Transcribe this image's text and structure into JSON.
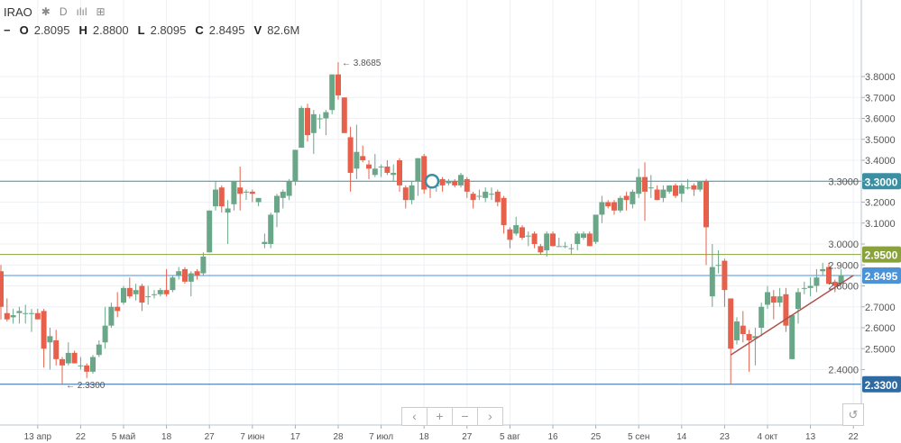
{
  "header": {
    "symbol": "IRAO",
    "interval": "D",
    "collapse_symbol": "−",
    "ohlcv": [
      {
        "label": "O",
        "value": "2.8095"
      },
      {
        "label": "H",
        "value": "2.8800"
      },
      {
        "label": "L",
        "value": "2.8095"
      },
      {
        "label": "C",
        "value": "2.8495"
      },
      {
        "label": "V",
        "value": "82.6M"
      }
    ]
  },
  "nav": {
    "left": "‹",
    "zoom_in": "+",
    "zoom_out": "−",
    "right": "›",
    "reset": "↺"
  },
  "colors": {
    "up": "#6aa789",
    "down": "#e7604c",
    "grid": "#eef1f4"
  },
  "chart_data": {
    "type": "candlestick",
    "title": "IRAO",
    "ylim": [
      2.3,
      3.9
    ],
    "y_ticks": [
      "2.4000",
      "2.5000",
      "2.6000",
      "2.7000",
      "2.8000",
      "2.9000",
      "3.0000",
      "3.1000",
      "3.2000",
      "3.3000",
      "3.4000",
      "3.5000",
      "3.6000",
      "3.7000",
      "3.8000"
    ],
    "x_ticks": [
      {
        "label": "13 апр",
        "index": 6
      },
      {
        "label": "22",
        "index": 13
      },
      {
        "label": "5 май",
        "index": 20
      },
      {
        "label": "18",
        "index": 27
      },
      {
        "label": "27",
        "index": 34
      },
      {
        "label": "7 июн",
        "index": 41
      },
      {
        "label": "17",
        "index": 48
      },
      {
        "label": "28",
        "index": 55
      },
      {
        "label": "7 июл",
        "index": 62
      },
      {
        "label": "18",
        "index": 69
      },
      {
        "label": "27",
        "index": 76
      },
      {
        "label": "5 авг",
        "index": 83
      },
      {
        "label": "16",
        "index": 90
      },
      {
        "label": "25",
        "index": 97
      },
      {
        "label": "5 сен",
        "index": 104
      },
      {
        "label": "14",
        "index": 111
      },
      {
        "label": "23",
        "index": 118
      },
      {
        "label": "4 окт",
        "index": 125
      },
      {
        "label": "13",
        "index": 132
      },
      {
        "label": "22",
        "index": 139
      }
    ],
    "ohlc": [
      [
        2.87,
        2.9,
        2.64,
        2.7
      ],
      [
        2.67,
        2.74,
        2.63,
        2.64
      ],
      [
        2.65,
        2.69,
        2.62,
        2.66
      ],
      [
        2.67,
        2.7,
        2.62,
        2.68
      ],
      [
        2.67,
        2.71,
        2.62,
        2.67
      ],
      [
        2.67,
        2.69,
        2.58,
        2.67
      ],
      [
        2.67,
        2.69,
        2.64,
        2.64
      ],
      [
        2.68,
        2.69,
        2.41,
        2.5
      ],
      [
        2.53,
        2.6,
        2.4,
        2.56
      ],
      [
        2.54,
        2.59,
        2.42,
        2.45
      ],
      [
        2.45,
        2.46,
        2.33,
        2.42
      ],
      [
        2.43,
        2.53,
        2.42,
        2.48
      ],
      [
        2.48,
        2.49,
        2.43,
        2.43
      ],
      [
        2.42,
        2.46,
        2.4,
        2.42
      ],
      [
        2.42,
        2.43,
        2.36,
        2.39
      ],
      [
        2.39,
        2.47,
        2.38,
        2.46
      ],
      [
        2.47,
        2.54,
        2.46,
        2.52
      ],
      [
        2.53,
        2.7,
        2.5,
        2.61
      ],
      [
        2.61,
        2.72,
        2.6,
        2.7
      ],
      [
        2.7,
        2.77,
        2.65,
        2.68
      ],
      [
        2.72,
        2.8,
        2.71,
        2.79
      ],
      [
        2.79,
        2.84,
        2.74,
        2.75
      ],
      [
        2.76,
        2.81,
        2.73,
        2.78
      ],
      [
        2.8,
        2.81,
        2.68,
        2.72
      ],
      [
        2.75,
        2.8,
        2.71,
        2.75
      ],
      [
        2.76,
        2.78,
        2.74,
        2.76
      ],
      [
        2.76,
        2.79,
        2.75,
        2.78
      ],
      [
        2.78,
        2.88,
        2.75,
        2.76
      ],
      [
        2.78,
        2.85,
        2.77,
        2.84
      ],
      [
        2.85,
        2.89,
        2.83,
        2.87
      ],
      [
        2.88,
        2.89,
        2.81,
        2.82
      ],
      [
        2.82,
        2.87,
        2.75,
        2.86
      ],
      [
        2.87,
        2.88,
        2.83,
        2.85
      ],
      [
        2.86,
        2.96,
        2.85,
        2.94
      ],
      [
        2.96,
        3.16,
        2.96,
        3.16
      ],
      [
        3.18,
        3.3,
        3.16,
        3.26
      ],
      [
        3.27,
        3.28,
        3.15,
        3.18
      ],
      [
        3.15,
        3.21,
        3.0,
        3.17
      ],
      [
        3.19,
        3.3,
        3.16,
        3.3
      ],
      [
        3.27,
        3.37,
        3.16,
        3.24
      ],
      [
        3.25,
        3.26,
        3.21,
        3.25
      ],
      [
        3.25,
        3.26,
        3.2,
        3.24
      ],
      [
        3.2,
        3.22,
        3.18,
        3.22
      ],
      [
        3.0,
        3.05,
        2.98,
        3.01
      ],
      [
        3.0,
        3.15,
        2.98,
        3.14
      ],
      [
        3.15,
        3.24,
        3.08,
        3.23
      ],
      [
        3.22,
        3.26,
        3.17,
        3.25
      ],
      [
        3.23,
        3.31,
        3.21,
        3.3
      ],
      [
        3.3,
        3.45,
        3.28,
        3.45
      ],
      [
        3.46,
        3.66,
        3.46,
        3.65
      ],
      [
        3.65,
        3.67,
        3.49,
        3.52
      ],
      [
        3.53,
        3.64,
        3.43,
        3.62
      ],
      [
        3.6,
        3.62,
        3.55,
        3.6
      ],
      [
        3.6,
        3.64,
        3.52,
        3.63
      ],
      [
        3.64,
        3.81,
        3.62,
        3.81
      ],
      [
        3.81,
        3.8685,
        3.69,
        3.71
      ],
      [
        3.7,
        3.7,
        3.53,
        3.53
      ],
      [
        3.51,
        3.56,
        3.25,
        3.34
      ],
      [
        3.36,
        3.57,
        3.31,
        3.44
      ],
      [
        3.42,
        3.47,
        3.39,
        3.4
      ],
      [
        3.38,
        3.4,
        3.31,
        3.36
      ],
      [
        3.33,
        3.43,
        3.32,
        3.36
      ],
      [
        3.37,
        3.38,
        3.32,
        3.37
      ],
      [
        3.37,
        3.4,
        3.33,
        3.34
      ],
      [
        3.33,
        3.38,
        3.3,
        3.34
      ],
      [
        3.4,
        3.41,
        3.25,
        3.28
      ],
      [
        3.27,
        3.28,
        3.17,
        3.21
      ],
      [
        3.21,
        3.3,
        3.19,
        3.28
      ],
      [
        3.3,
        3.41,
        3.23,
        3.41
      ],
      [
        3.42,
        3.43,
        3.24,
        3.26
      ],
      [
        3.29,
        3.32,
        3.22,
        3.27
      ],
      [
        3.28,
        3.3,
        3.25,
        3.28
      ],
      [
        3.31,
        3.32,
        3.25,
        3.28
      ],
      [
        3.29,
        3.31,
        3.28,
        3.3
      ],
      [
        3.3,
        3.31,
        3.27,
        3.28
      ],
      [
        3.28,
        3.34,
        3.27,
        3.33
      ],
      [
        3.31,
        3.32,
        3.22,
        3.25
      ],
      [
        3.24,
        3.25,
        3.17,
        3.21
      ],
      [
        3.23,
        3.26,
        3.21,
        3.23
      ],
      [
        3.22,
        3.27,
        3.2,
        3.25
      ],
      [
        3.24,
        3.27,
        3.21,
        3.24
      ],
      [
        3.25,
        3.26,
        3.18,
        3.2
      ],
      [
        3.22,
        3.23,
        3.05,
        3.09
      ],
      [
        3.07,
        3.08,
        2.98,
        3.02
      ],
      [
        3.05,
        3.13,
        3.04,
        3.09
      ],
      [
        3.08,
        3.09,
        3.02,
        3.03
      ],
      [
        3.04,
        3.06,
        2.99,
        3.04
      ],
      [
        3.05,
        3.06,
        2.98,
        3.0
      ],
      [
        2.99,
        3.0,
        2.95,
        2.96
      ],
      [
        2.97,
        3.06,
        2.94,
        3.05
      ],
      [
        3.05,
        3.06,
        2.99,
        2.99
      ],
      [
        2.99,
        3.03,
        2.99,
        2.99
      ],
      [
        2.99,
        3.01,
        2.98,
        2.99
      ],
      [
        2.98,
        3.0,
        2.95,
        2.98
      ],
      [
        3.0,
        3.06,
        2.97,
        3.05
      ],
      [
        3.03,
        3.06,
        3.02,
        3.05
      ],
      [
        3.05,
        3.06,
        2.99,
        2.99
      ],
      [
        3.01,
        3.14,
        3.0,
        3.14
      ],
      [
        3.14,
        3.23,
        3.1,
        3.2
      ],
      [
        3.2,
        3.21,
        3.17,
        3.18
      ],
      [
        3.2,
        3.21,
        3.14,
        3.16
      ],
      [
        3.16,
        3.23,
        3.15,
        3.22
      ],
      [
        3.23,
        3.25,
        3.16,
        3.21
      ],
      [
        3.19,
        3.26,
        3.17,
        3.25
      ],
      [
        3.24,
        3.36,
        3.22,
        3.32
      ],
      [
        3.32,
        3.39,
        3.11,
        3.25
      ],
      [
        3.27,
        3.33,
        3.22,
        3.27
      ],
      [
        3.26,
        3.28,
        3.21,
        3.21
      ],
      [
        3.22,
        3.28,
        3.2,
        3.26
      ],
      [
        3.25,
        3.28,
        3.24,
        3.28
      ],
      [
        3.28,
        3.29,
        3.22,
        3.23
      ],
      [
        3.24,
        3.29,
        3.2,
        3.28
      ],
      [
        3.27,
        3.31,
        3.26,
        3.27
      ],
      [
        3.28,
        3.29,
        3.23,
        3.26
      ],
      [
        3.26,
        3.3,
        3.25,
        3.3
      ],
      [
        3.3,
        3.31,
        2.9,
        3.08
      ],
      [
        2.75,
        3.0,
        2.7,
        2.89
      ],
      [
        2.9,
        2.97,
        2.86,
        2.9
      ],
      [
        2.92,
        2.93,
        2.7,
        2.78
      ],
      [
        2.74,
        2.74,
        2.33,
        2.5
      ],
      [
        2.54,
        2.65,
        2.52,
        2.63
      ],
      [
        2.61,
        2.68,
        2.53,
        2.57
      ],
      [
        2.57,
        2.59,
        2.39,
        2.54
      ],
      [
        2.55,
        2.6,
        2.42,
        2.56
      ],
      [
        2.6,
        2.72,
        2.56,
        2.7
      ],
      [
        2.71,
        2.8,
        2.69,
        2.77
      ],
      [
        2.75,
        2.78,
        2.64,
        2.72
      ],
      [
        2.72,
        2.79,
        2.7,
        2.75
      ],
      [
        2.76,
        2.79,
        2.58,
        2.61
      ],
      [
        2.45,
        2.66,
        2.45,
        2.66
      ],
      [
        2.69,
        2.79,
        2.62,
        2.77
      ],
      [
        2.79,
        2.82,
        2.76,
        2.79
      ],
      [
        2.79,
        2.84,
        2.75,
        2.8
      ],
      [
        2.8,
        2.88,
        2.77,
        2.84
      ],
      [
        2.87,
        2.91,
        2.85,
        2.88
      ],
      [
        2.89,
        2.91,
        2.81,
        2.81
      ],
      [
        2.82,
        2.83,
        2.77,
        2.8
      ],
      [
        2.8095,
        2.88,
        2.8095,
        2.8495
      ]
    ],
    "levels": [
      {
        "name": "resistance",
        "value": 3.3,
        "label": "3.3000",
        "color": "#3a8fa3"
      },
      {
        "name": "level-295",
        "value": 2.95,
        "label": "2.9500",
        "color": "#8aa23c"
      },
      {
        "name": "last-price",
        "value": 2.8495,
        "label": "2.8495",
        "color": "#4a93d8"
      },
      {
        "name": "support",
        "value": 2.33,
        "label": "2.3300",
        "color": "#2f6aa3"
      }
    ],
    "trendline": {
      "from": {
        "index": 119,
        "price": 2.47
      },
      "to": {
        "index": 139,
        "price": 2.85
      },
      "color": "#b0504a"
    },
    "annotations": [
      {
        "index": 55,
        "price": 3.8685,
        "label": "← 3.8685"
      },
      {
        "index": 10,
        "price": 2.33,
        "label": "← 2.3300"
      }
    ],
    "marker": {
      "index": 70,
      "price": 3.3
    }
  }
}
